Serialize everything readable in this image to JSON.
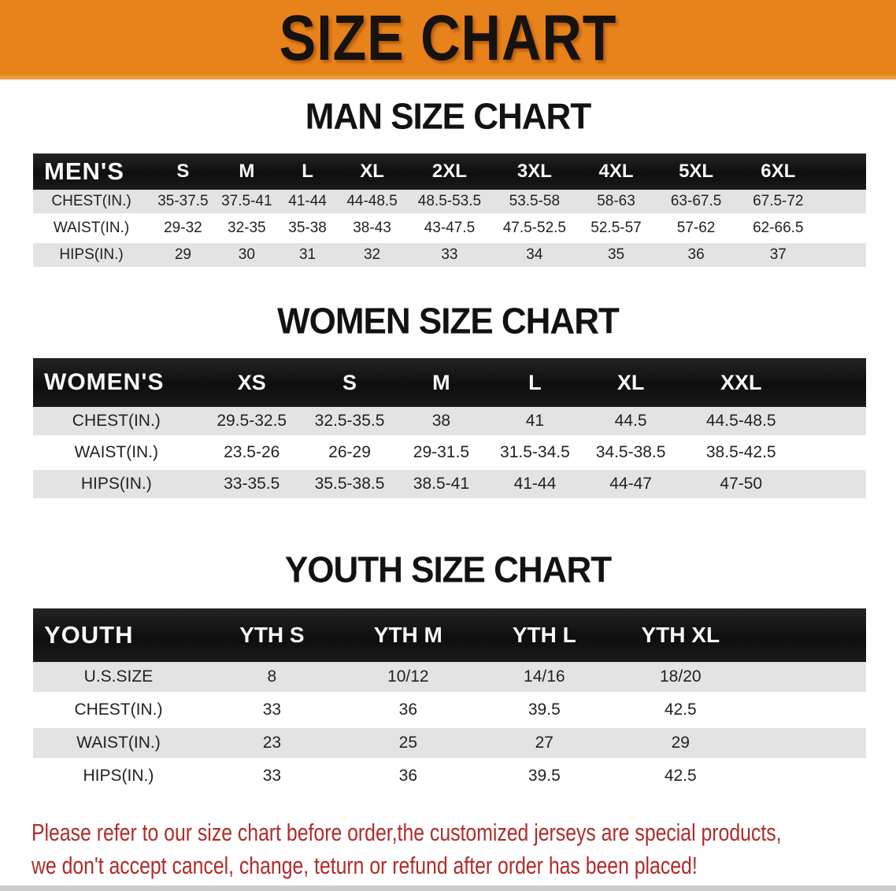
{
  "banner": {
    "title": "SIZE CHART",
    "bg_color": "#e8821a"
  },
  "men": {
    "title": "MAN SIZE CHART",
    "table": {
      "header": [
        "MEN'S",
        "S",
        "M",
        "L",
        "XL",
        "2XL",
        "3XL",
        "4XL",
        "5XL",
        "6XL"
      ],
      "rows": [
        [
          "CHEST(IN.)",
          "35-37.5",
          "37.5-41",
          "41-44",
          "44-48.5",
          "48.5-53.5",
          "53.5-58",
          "58-63",
          "63-67.5",
          "67.5-72"
        ],
        [
          "WAIST(IN.)",
          "29-32",
          "32-35",
          "35-38",
          "38-43",
          "43-47.5",
          "47.5-52.5",
          "52.5-57",
          "57-62",
          "62-66.5"
        ],
        [
          "HIPS(IN.)",
          "29",
          "30",
          "31",
          "32",
          "33",
          "34",
          "35",
          "36",
          "37"
        ]
      ]
    }
  },
  "women": {
    "title": "WOMEN SIZE CHART",
    "table": {
      "header": [
        "WOMEN'S",
        "XS",
        "S",
        "M",
        "L",
        "XL",
        "XXL"
      ],
      "rows": [
        [
          "CHEST(IN.)",
          "29.5-32.5",
          "32.5-35.5",
          "38",
          "41",
          "44.5",
          "44.5-48.5"
        ],
        [
          "WAIST(IN.)",
          "23.5-26",
          "26-29",
          "29-31.5",
          "31.5-34.5",
          "34.5-38.5",
          "38.5-42.5"
        ],
        [
          "HIPS(IN.)",
          "33-35.5",
          "35.5-38.5",
          "38.5-41",
          "41-44",
          "44-47",
          "47-50"
        ]
      ]
    }
  },
  "youth": {
    "title": "YOUTH SIZE CHART",
    "table": {
      "header": [
        "YOUTH",
        "YTH S",
        "YTH M",
        "YTH L",
        "YTH XL"
      ],
      "rows": [
        [
          "U.S.SIZE",
          "8",
          "10/12",
          "14/16",
          "18/20"
        ],
        [
          "CHEST(IN.)",
          "33",
          "36",
          "39.5",
          "42.5"
        ],
        [
          "WAIST(IN.)",
          "23",
          "25",
          "27",
          "29"
        ],
        [
          "HIPS(IN.)",
          "33",
          "36",
          "39.5",
          "42.5"
        ]
      ]
    }
  },
  "note": {
    "lines": [
      "Please refer to our size chart before order,the customized jerseys are special products,",
      "we don't accept cancel, change, teturn or refund after order has been placed!"
    ],
    "color": "#b22a2a"
  }
}
